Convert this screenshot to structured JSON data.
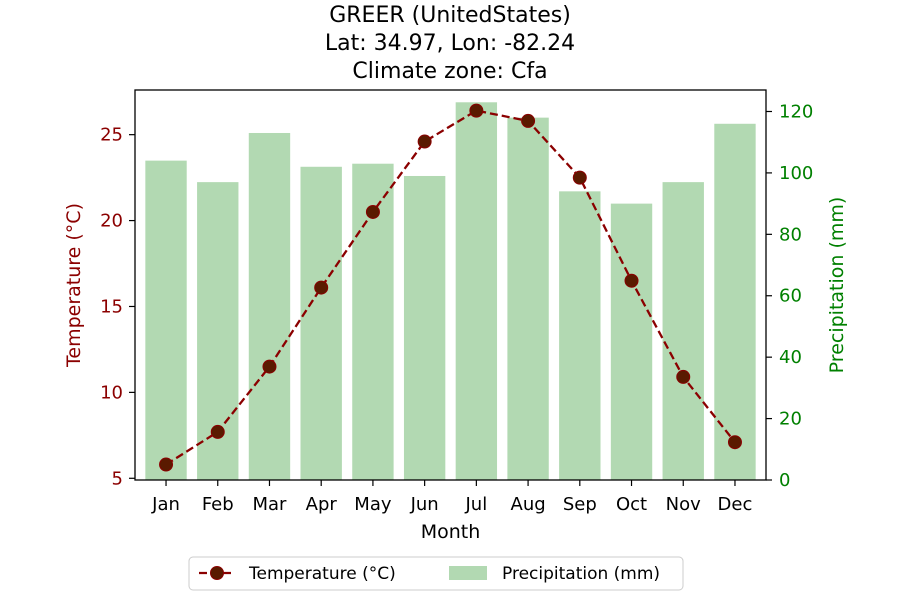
{
  "chart_data": {
    "type": "bar+line",
    "title_lines": [
      "GREER (UnitedStates)",
      "Lat: 34.97, Lon: -82.24",
      "Climate zone: Cfa"
    ],
    "xlabel": "Month",
    "ylabel_left": "Temperature (°C)",
    "ylabel_right": "Precipitation (mm)",
    "categories": [
      "Jan",
      "Feb",
      "Mar",
      "Apr",
      "May",
      "Jun",
      "Jul",
      "Aug",
      "Sep",
      "Oct",
      "Nov",
      "Dec"
    ],
    "series": [
      {
        "name": "Temperature (°C)",
        "type": "line",
        "axis": "left",
        "color": "#8b0000",
        "marker_color": "#5a1a00",
        "line_style": "dashed",
        "values": [
          5.8,
          7.7,
          11.5,
          16.1,
          20.5,
          24.6,
          26.4,
          25.8,
          22.5,
          16.5,
          10.9,
          7.1
        ]
      },
      {
        "name": "Precipitation (mm)",
        "type": "bar",
        "axis": "right",
        "color": "#b2d9b2",
        "values": [
          104,
          97,
          113,
          102,
          103,
          99,
          123,
          118,
          94,
          90,
          97,
          116
        ]
      }
    ],
    "ylim_left": [
      4.9,
      27.6
    ],
    "ylim_right": [
      0,
      127
    ],
    "yticks_left": [
      5,
      10,
      15,
      20,
      25
    ],
    "yticks_right": [
      0,
      20,
      40,
      60,
      80,
      100,
      120
    ],
    "left_axis_color": "#8b0000",
    "right_axis_color": "#008000",
    "legend_position": "bottom-center",
    "grid": false
  }
}
